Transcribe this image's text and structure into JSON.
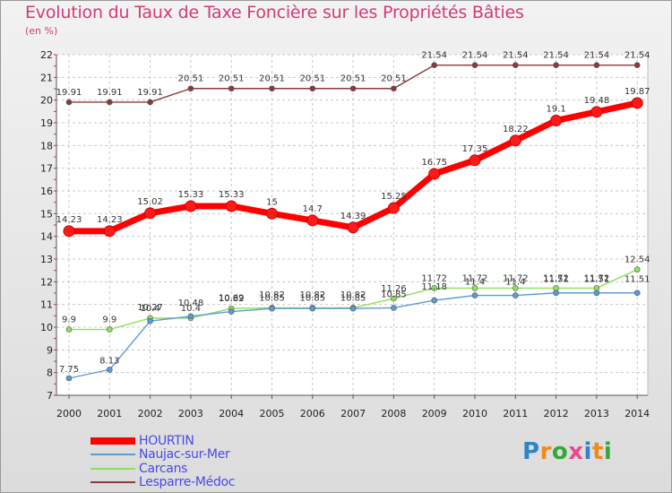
{
  "title": "Evolution du Taux de Taxe Foncière sur les Propriétés Bâties",
  "unit": "(en %)",
  "logo": {
    "letters": [
      "P",
      "r",
      "o",
      "x",
      "i",
      "t",
      "i"
    ],
    "colors": [
      "#2f84c6",
      "#f08a1c",
      "#36a63a",
      "#e94b8a",
      "#2f84c6",
      "#f08a1c",
      "#36a63a"
    ]
  },
  "chart_data": {
    "type": "line",
    "title": "Evolution du Taux de Taxe Foncière sur les Propriétés Bâties",
    "ylabel": "(en %)",
    "x": [
      "2000",
      "2001",
      "2002",
      "2003",
      "2004",
      "2005",
      "2006",
      "2007",
      "2008",
      "2009",
      "2010",
      "2011",
      "2012",
      "2013",
      "2014"
    ],
    "ylim": [
      7,
      22
    ],
    "yticks": [
      "7",
      "8",
      "9",
      "10",
      "11",
      "12",
      "13",
      "14",
      "15",
      "16",
      "17",
      "18",
      "19",
      "20",
      "21",
      "22"
    ],
    "grid": true,
    "legend_position": "bottom-left",
    "series": [
      {
        "name": "HOURTIN",
        "color": "#ff0000",
        "values": [
          14.23,
          14.23,
          15.02,
          15.33,
          15.33,
          15,
          14.7,
          14.39,
          15.25,
          16.75,
          17.35,
          18.22,
          19.1,
          19.48,
          19.87
        ],
        "labels": [
          "14.23",
          "14.23",
          "15.02",
          "15.33",
          "15.33",
          "15",
          "14.7",
          "14.39",
          "15.25",
          "16.75",
          "17.35",
          "18.22",
          "19.1",
          "19.48",
          "19.87"
        ]
      },
      {
        "name": "Naujac-sur-Mer",
        "color": "#5b9bd5",
        "values": [
          7.75,
          8.13,
          10.27,
          10.48,
          10.69,
          10.82,
          10.82,
          10.82,
          10.85,
          11.18,
          11.4,
          11.4,
          11.51,
          11.51,
          11.51
        ],
        "labels": [
          "7.75",
          "8.13",
          "10.27",
          "10.48",
          "10.69",
          "10.82",
          "10.82",
          "10.82",
          "10.85",
          "11.18",
          "11.4",
          "11.4",
          "11.51",
          "11.51",
          "11.51"
        ]
      },
      {
        "name": "Carcans",
        "color": "#8ee05a",
        "values": [
          9.9,
          9.9,
          10.4,
          10.4,
          10.82,
          10.85,
          10.85,
          10.85,
          11.26,
          11.72,
          11.72,
          11.72,
          11.72,
          11.72,
          12.54
        ],
        "labels": [
          "9.9",
          "9.9",
          "10.4",
          "10.4",
          "10.82",
          "10.85",
          "10.85",
          "10.85",
          "11.26",
          "11.72",
          "11.72",
          "11.72",
          "11.72",
          "11.72",
          "12.54"
        ]
      },
      {
        "name": "Lesparre-Médoc",
        "color": "#8b3a3a",
        "values": [
          19.91,
          19.91,
          19.91,
          20.51,
          20.51,
          20.51,
          20.51,
          20.51,
          20.51,
          21.54,
          21.54,
          21.54,
          21.54,
          21.54,
          21.54
        ],
        "labels": [
          "19.91",
          "19.91",
          "19.91",
          "20.51",
          "20.51",
          "20.51",
          "20.51",
          "20.51",
          "20.51",
          "21.54",
          "21.54",
          "21.54",
          "21.54",
          "21.54",
          "21.54"
        ]
      }
    ]
  }
}
